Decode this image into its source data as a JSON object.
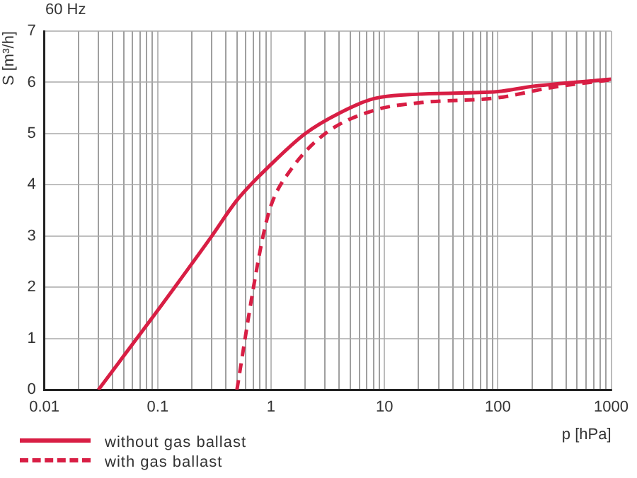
{
  "chart_data": {
    "type": "line",
    "title": "60 Hz",
    "xlabel": "p [hPa]",
    "ylabel": "S [m³/h]",
    "log": "x",
    "grid": true,
    "legend": "bottom left",
    "marker": "none",
    "xlim": [
      0.01,
      1000
    ],
    "ylim": [
      0,
      7
    ],
    "yticks": [
      0,
      1,
      2,
      3,
      4,
      5,
      6,
      7
    ],
    "xticks": [
      {
        "value": 0.01,
        "label": "0.01"
      },
      {
        "value": 0.02,
        "label": null
      },
      {
        "value": 0.03,
        "label": null
      },
      {
        "value": 0.04,
        "label": null
      },
      {
        "value": 0.05,
        "label": null
      },
      {
        "value": 0.06,
        "label": null
      },
      {
        "value": 0.07,
        "label": null
      },
      {
        "value": 0.08,
        "label": null
      },
      {
        "value": 0.09,
        "label": null
      },
      {
        "value": 0.1,
        "label": "0.1"
      },
      {
        "value": 0.2,
        "label": null
      },
      {
        "value": 0.3,
        "label": null
      },
      {
        "value": 0.4,
        "label": null
      },
      {
        "value": 0.5,
        "label": null
      },
      {
        "value": 0.6,
        "label": null
      },
      {
        "value": 0.7,
        "label": null
      },
      {
        "value": 0.8,
        "label": null
      },
      {
        "value": 0.9,
        "label": null
      },
      {
        "value": 1,
        "label": "1"
      },
      {
        "value": 2,
        "label": null
      },
      {
        "value": 3,
        "label": null
      },
      {
        "value": 4,
        "label": null
      },
      {
        "value": 5,
        "label": null
      },
      {
        "value": 6,
        "label": null
      },
      {
        "value": 7,
        "label": null
      },
      {
        "value": 8,
        "label": null
      },
      {
        "value": 9,
        "label": null
      },
      {
        "value": 10,
        "label": "10"
      },
      {
        "value": 20,
        "label": null
      },
      {
        "value": 30,
        "label": null
      },
      {
        "value": 40,
        "label": null
      },
      {
        "value": 50,
        "label": null
      },
      {
        "value": 60,
        "label": null
      },
      {
        "value": 70,
        "label": null
      },
      {
        "value": 80,
        "label": null
      },
      {
        "value": 90,
        "label": null
      },
      {
        "value": 100,
        "label": "100"
      },
      {
        "value": 200,
        "label": null
      },
      {
        "value": 300,
        "label": null
      },
      {
        "value": 400,
        "label": null
      },
      {
        "value": 500,
        "label": null
      },
      {
        "value": 600,
        "label": null
      },
      {
        "value": 700,
        "label": null
      },
      {
        "value": 800,
        "label": null
      },
      {
        "value": 900,
        "label": null
      },
      {
        "value": 1000,
        "label": "1000"
      }
    ],
    "series": [
      {
        "name": "without gas ballast",
        "color": "#d81e44",
        "line_style": "solid",
        "x": [
          0.03,
          0.1,
          0.3,
          0.5,
          1,
          2,
          4,
          8,
          20,
          100,
          200,
          1000
        ],
        "values": [
          0,
          1.55,
          3.0,
          3.7,
          4.4,
          5.0,
          5.4,
          5.68,
          5.77,
          5.82,
          5.92,
          6.06
        ]
      },
      {
        "name": "with gas ballast",
        "color": "#d81e44",
        "line_style": "dashed",
        "x": [
          0.5,
          0.7,
          0.85,
          1,
          1.5,
          3,
          8,
          20,
          100,
          300,
          1000
        ],
        "values": [
          0,
          2.0,
          3.0,
          3.6,
          4.3,
          5.0,
          5.45,
          5.6,
          5.7,
          5.9,
          6.05
        ]
      }
    ]
  }
}
